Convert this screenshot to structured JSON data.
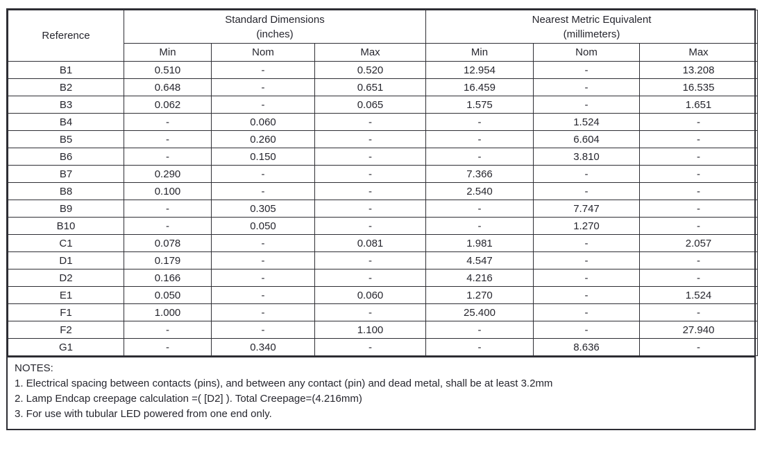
{
  "table": {
    "reference_header": "Reference",
    "col_groups": [
      {
        "title": "Standard Dimensions",
        "subtitle": "(inches)"
      },
      {
        "title": "Nearest Metric Equivalent",
        "subtitle": "(millimeters)"
      }
    ],
    "sub_headers": [
      "Min",
      "Nom",
      "Max",
      "Min",
      "Nom",
      "Max"
    ],
    "rows": [
      {
        "ref": "B1",
        "values": [
          "0.510",
          "-",
          "0.520",
          "12.954",
          "-",
          "13.208"
        ]
      },
      {
        "ref": "B2",
        "values": [
          "0.648",
          "-",
          "0.651",
          "16.459",
          "-",
          "16.535"
        ]
      },
      {
        "ref": "B3",
        "values": [
          "0.062",
          "-",
          "0.065",
          "1.575",
          "-",
          "1.651"
        ]
      },
      {
        "ref": "B4",
        "values": [
          "-",
          "0.060",
          "-",
          "-",
          "1.524",
          "-"
        ]
      },
      {
        "ref": "B5",
        "values": [
          "-",
          "0.260",
          "-",
          "-",
          "6.604",
          "-"
        ]
      },
      {
        "ref": "B6",
        "values": [
          "-",
          "0.150",
          "-",
          "-",
          "3.810",
          "-"
        ]
      },
      {
        "ref": "B7",
        "values": [
          "0.290",
          "-",
          "-",
          "7.366",
          "-",
          "-"
        ]
      },
      {
        "ref": "B8",
        "values": [
          "0.100",
          "-",
          "-",
          "2.540",
          "-",
          "-"
        ]
      },
      {
        "ref": "B9",
        "values": [
          "-",
          "0.305",
          "-",
          "-",
          "7.747",
          "-"
        ]
      },
      {
        "ref": "B10",
        "values": [
          "-",
          "0.050",
          "-",
          "-",
          "1.270",
          "-"
        ]
      },
      {
        "ref": "C1",
        "values": [
          "0.078",
          "-",
          "0.081",
          "1.981",
          "-",
          "2.057"
        ]
      },
      {
        "ref": "D1",
        "values": [
          "0.179",
          "-",
          "-",
          "4.547",
          "-",
          "-"
        ]
      },
      {
        "ref": "D2",
        "values": [
          "0.166",
          "-",
          "-",
          "4.216",
          "-",
          "-"
        ]
      },
      {
        "ref": "E1",
        "values": [
          "0.050",
          "-",
          "0.060",
          "1.270",
          "-",
          "1.524"
        ]
      },
      {
        "ref": "F1",
        "values": [
          "1.000",
          "-",
          "-",
          "25.400",
          "-",
          "-"
        ]
      },
      {
        "ref": "F2",
        "values": [
          "-",
          "-",
          "1.100",
          "-",
          "-",
          "27.940"
        ]
      },
      {
        "ref": "G1",
        "values": [
          "-",
          "0.340",
          "-",
          "-",
          "8.636",
          "-"
        ]
      }
    ]
  },
  "notes": {
    "title": "NOTES:",
    "items": [
      "1. Electrical spacing between contacts (pins), and between any contact (pin) and dead metal, shall be at least 3.2mm",
      "2. Lamp Endcap creepage calculation =( [D2] ). Total Creepage=(4.216mm)",
      "3. For use with tubular LED powered from one end only."
    ]
  }
}
